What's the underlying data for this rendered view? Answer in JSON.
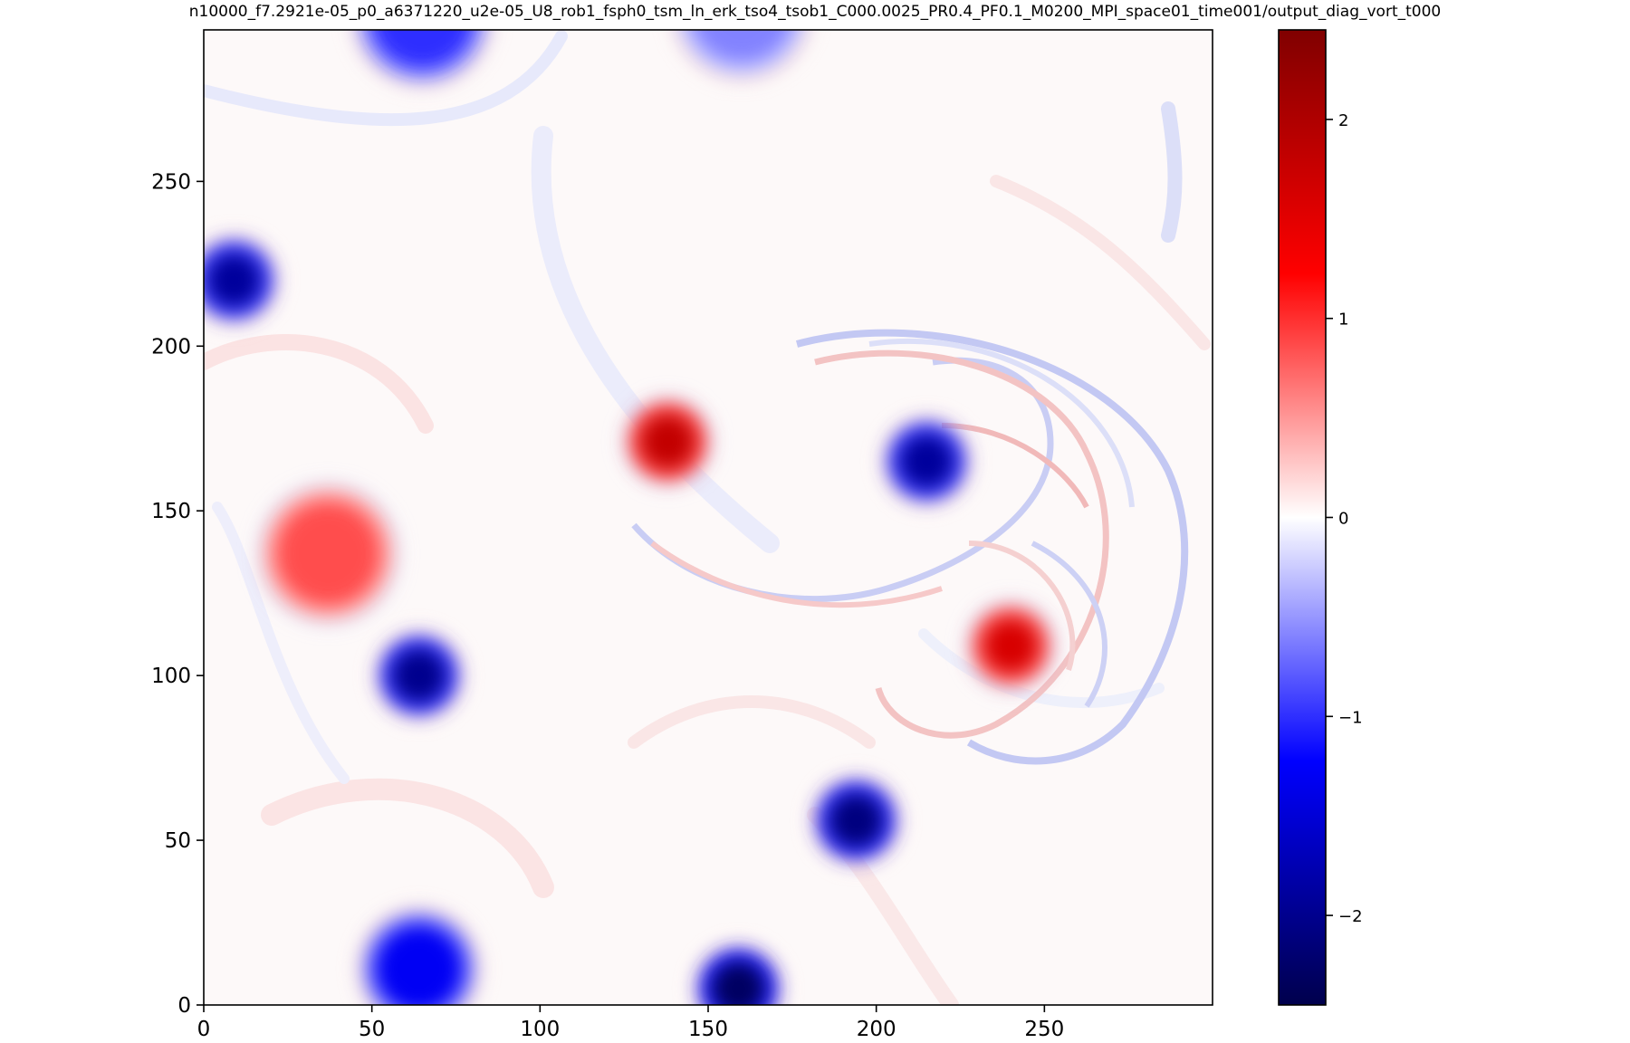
{
  "chart_data": {
    "type": "heatmap",
    "title": "n10000_f7.2921e-05_p0_a6371220_u2e-05_U8_rob1_fsph0_tsm_ln_erk_tso4_tsob1_C000.0025_PR0.4_PF0.1_M0200_MPI_space01_time001/output_diag_vort_t000",
    "xlabel": "",
    "ylabel": "",
    "xlim": [
      0,
      300
    ],
    "ylim": [
      0,
      296
    ],
    "xticks": [
      0,
      50,
      100,
      150,
      200,
      250
    ],
    "yticks": [
      0,
      50,
      100,
      150,
      200,
      250
    ],
    "colormap": "seismic",
    "colorbar": {
      "vmin": -2.45,
      "vmax": 2.45,
      "ticks": [
        -2,
        -1,
        0,
        1,
        2
      ],
      "tick_labels": [
        "−2",
        "−1",
        "0",
        "1",
        "2"
      ]
    },
    "features": [
      {
        "kind": "vortex",
        "x": 65,
        "y": 300,
        "value": -1.0
      },
      {
        "kind": "vortex",
        "x": 160,
        "y": 302,
        "value": -0.6
      },
      {
        "kind": "vortex",
        "x": 9,
        "y": 220,
        "value": -1.9
      },
      {
        "kind": "vortex",
        "x": 37,
        "y": 137,
        "value": 0.85
      },
      {
        "kind": "vortex",
        "x": 64,
        "y": 100,
        "value": -2.0
      },
      {
        "kind": "vortex",
        "x": 138,
        "y": 171,
        "value": 1.8
      },
      {
        "kind": "vortex",
        "x": 215,
        "y": 165,
        "value": -1.9
      },
      {
        "kind": "vortex",
        "x": 240,
        "y": 109,
        "value": 1.6
      },
      {
        "kind": "vortex",
        "x": 194,
        "y": 56,
        "value": -2.1
      },
      {
        "kind": "vortex",
        "x": 64,
        "y": 11,
        "value": -1.3
      },
      {
        "kind": "vortex",
        "x": 159,
        "y": 5,
        "value": -2.3
      }
    ]
  }
}
